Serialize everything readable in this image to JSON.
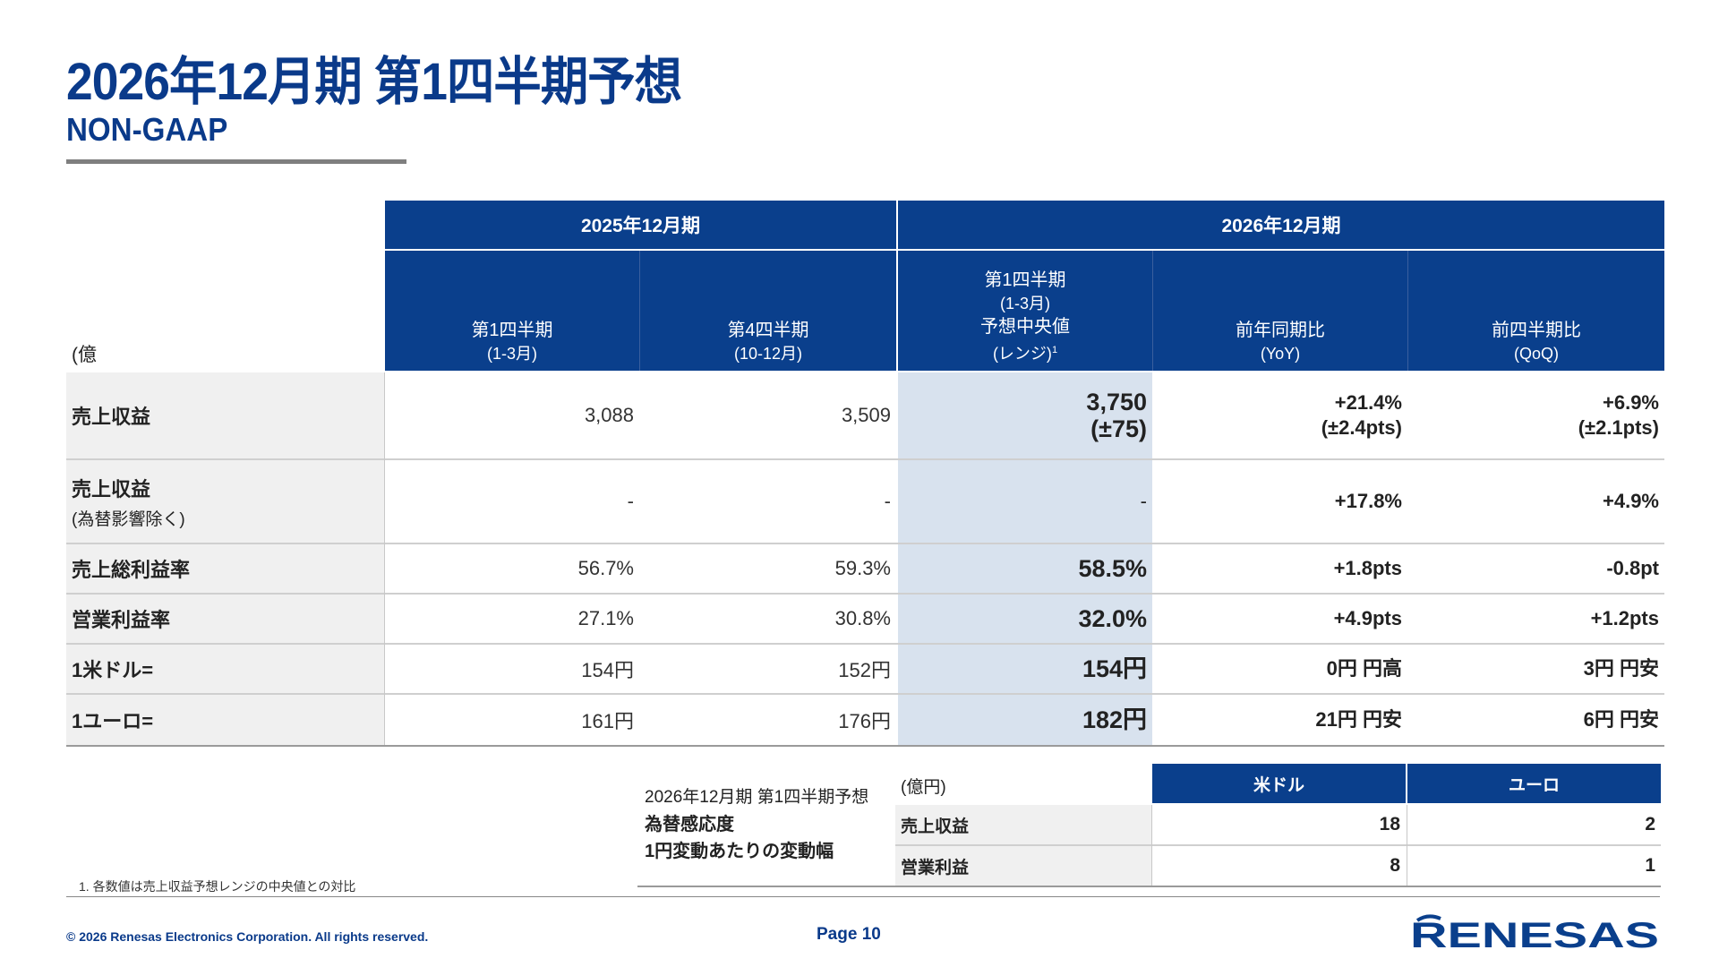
{
  "header": {
    "title": "2026年12月期 第1四半期予想",
    "subtitle": "NON-GAAP"
  },
  "main_table": {
    "unit": "(億円)",
    "group_2025": "2025年12月期",
    "group_2026": "2026年12月期",
    "col_q1_2025": {
      "line1": "第1四半期",
      "line2": "(1-3月)"
    },
    "col_q4_2025": {
      "line1": "第4四半期",
      "line2": "(10-12月)"
    },
    "col_q1_2026": {
      "line1": "第1四半期",
      "line2": "(1-3月)",
      "line3": "予想中央値",
      "line4": "(レンジ)",
      "note_mark": "1"
    },
    "col_yoy": {
      "line1": "前年同期比",
      "line2": "(YoY)"
    },
    "col_qoq": {
      "line1": "前四半期比",
      "line2": "(QoQ)"
    },
    "rows": [
      {
        "label": "売上収益",
        "sublabel": "",
        "q1_2025": "3,088",
        "q4_2025": "3,509",
        "q1_2026": "3,750",
        "q1_2026_sub": "(±75)",
        "yoy": "+21.4%",
        "yoy_sub": "(±2.4pts)",
        "qoq": "+6.9%",
        "qoq_sub": "(±2.1pts)"
      },
      {
        "label": "売上収益",
        "sublabel": "(為替影響除く)",
        "q1_2025": "-",
        "q4_2025": "-",
        "q1_2026": "-",
        "q1_2026_sub": "",
        "yoy": "+17.8%",
        "yoy_sub": "",
        "qoq": "+4.9%",
        "qoq_sub": ""
      },
      {
        "label": "売上総利益率",
        "sublabel": "",
        "q1_2025": "56.7%",
        "q4_2025": "59.3%",
        "q1_2026": "58.5%",
        "q1_2026_sub": "",
        "yoy": "+1.8pts",
        "yoy_sub": "",
        "qoq": "-0.8pt",
        "qoq_sub": ""
      },
      {
        "label": "営業利益率",
        "sublabel": "",
        "q1_2025": "27.1%",
        "q4_2025": "30.8%",
        "q1_2026": "32.0%",
        "q1_2026_sub": "",
        "yoy": "+4.9pts",
        "yoy_sub": "",
        "qoq": "+1.2pts",
        "qoq_sub": ""
      },
      {
        "label": "1米ドル=",
        "sublabel": "",
        "q1_2025": "154円",
        "q4_2025": "152円",
        "q1_2026": "154円",
        "q1_2026_sub": "",
        "yoy": "0円 円高",
        "yoy_sub": "",
        "qoq": "3円 円安",
        "qoq_sub": ""
      },
      {
        "label": "1ユーロ=",
        "sublabel": "",
        "q1_2025": "161円",
        "q4_2025": "176円",
        "q1_2026": "182円",
        "q1_2026_sub": "",
        "yoy": "21円 円安",
        "yoy_sub": "",
        "qoq": "6円 円安",
        "qoq_sub": ""
      }
    ]
  },
  "sensitivity": {
    "caption_line1": "2026年12月期 第1四半期予想",
    "caption_line2": "為替感応度",
    "caption_line3": "1円変動あたりの変動幅",
    "unit": "(億円)",
    "col_usd": "米ドル",
    "col_eur": "ユーロ",
    "rows": [
      {
        "label": "売上収益",
        "usd": "18",
        "eur": "2"
      },
      {
        "label": "営業利益",
        "usd": "8",
        "eur": "1"
      }
    ]
  },
  "footnote": "1. 各数値は売上収益予想レンジの中央値との対比",
  "footer": {
    "copyright": "© 2026 Renesas Electronics Corporation. All rights reserved.",
    "page": "Page 10",
    "logo_text": "RENESAS"
  },
  "colors": {
    "brand_blue": "#0a3f8c",
    "highlight": "#d8e2ee",
    "label_bg": "#f0f0f0"
  }
}
